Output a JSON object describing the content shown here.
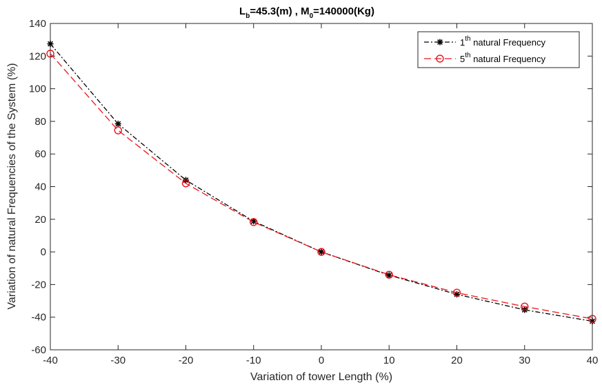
{
  "chart_data": {
    "type": "line",
    "title": {
      "lb_base": "L",
      "lb_sub": "b",
      "lb_value": "=45.3(m) , M",
      "m_sub": "0",
      "m_value": "=140000(Kg)"
    },
    "xlabel": "Variation of tower Length (%)",
    "ylabel": "Variation of  natural Frequencies of the System (%)",
    "xlim": [
      -40,
      40
    ],
    "ylim": [
      -60,
      140
    ],
    "xticks": [
      "-40",
      "-30",
      "-20",
      "-10",
      "0",
      "10",
      "20",
      "30",
      "40"
    ],
    "yticks": [
      "-60",
      "-40",
      "-20",
      "0",
      "20",
      "40",
      "60",
      "80",
      "100",
      "120",
      "140"
    ],
    "grid": false,
    "legend_position": "top-right",
    "x": [
      -40,
      -30,
      -20,
      -10,
      0,
      10,
      20,
      30,
      40
    ],
    "series": [
      {
        "name": "1th natural Frequency",
        "name_prefix": "1",
        "name_sup": "th",
        "name_suffix": " natural Frequency",
        "color": "#000000",
        "line_style": "dash-dot",
        "marker": "asterisk",
        "values": [
          127.5,
          78.5,
          44.0,
          18.8,
          0,
          -14.3,
          -26.0,
          -35.5,
          -42.5
        ]
      },
      {
        "name": "5th natural Frequency",
        "name_prefix": "5",
        "name_sup": "th",
        "name_suffix": " natural Frequency",
        "color": "#e8141b",
        "line_style": "dashed",
        "marker": "circle",
        "values": [
          121.5,
          74.5,
          42.0,
          18.3,
          0,
          -14.0,
          -25.0,
          -33.5,
          -41.0
        ]
      }
    ]
  }
}
